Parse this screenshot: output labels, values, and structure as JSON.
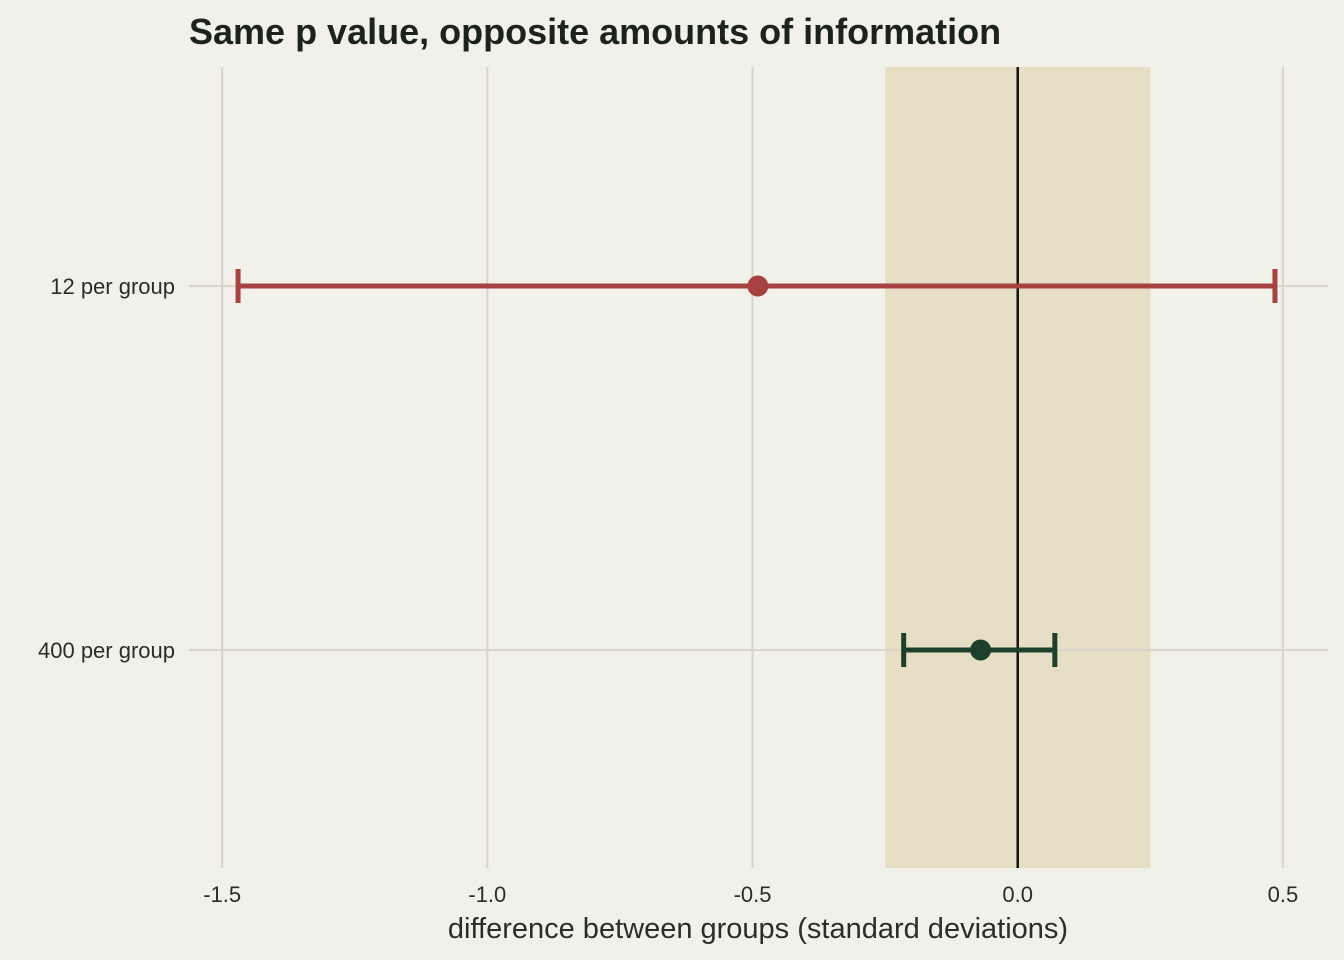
{
  "chart_data": {
    "type": "errorbar",
    "title": "Same p value, opposite amounts of information",
    "xlabel": "difference between groups (standard deviations)",
    "ylabel": "",
    "xlim": [
      -1.5625,
      0.585
    ],
    "x_ticks": [
      -1.5,
      -1.0,
      -0.5,
      0.0,
      0.5
    ],
    "x_tick_labels": [
      "-1.5",
      "-1.0",
      "-0.5",
      "0.0",
      "0.5"
    ],
    "reference_line_x": 0.0,
    "shaded_region_x": [
      -0.25,
      0.25
    ],
    "grid": true,
    "categories": [
      "12 per group",
      "400 per group"
    ],
    "series": [
      {
        "category": "12 per group",
        "estimate": -0.49,
        "lower": -1.47,
        "upper": 0.485,
        "color": "#a84242"
      },
      {
        "category": "400 per group",
        "estimate": -0.07,
        "lower": -0.215,
        "upper": 0.07,
        "color": "#1d3f2b"
      }
    ]
  },
  "colors": {
    "background": "#f2f1e9",
    "grid": "#d6d5c8",
    "shade": "#e6dfc6",
    "reference_line": "#111111"
  }
}
